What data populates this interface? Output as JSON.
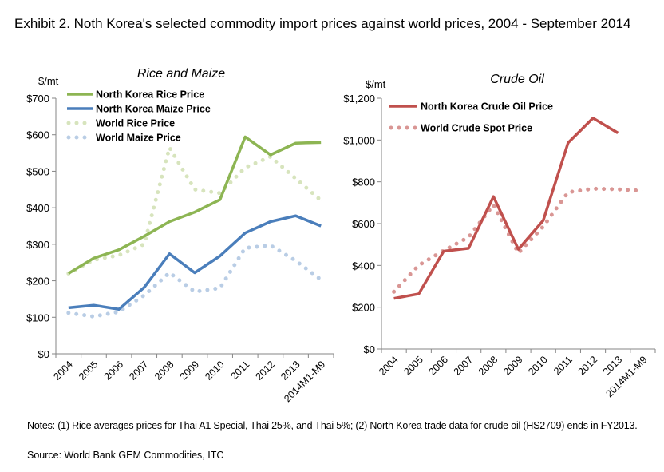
{
  "title": "Exhibit 2. Noth Korea's selected commodity import prices against world prices, 2004 - September 2014",
  "notes": "Notes: (1) Rice averages prices for Thai A1 Special, Thai 25%, and Thai 5%; (2) North Korea trade data for crude oil (HS2709) ends in FY2013.",
  "source": "Source: World Bank  GEM Commodities, ITC",
  "chart_data": [
    {
      "type": "line",
      "title": "Rice and Maize",
      "ylabel": "$/mt",
      "ylim": [
        0,
        700
      ],
      "yticks": [
        "$0",
        "$100",
        "$200",
        "$300",
        "$400",
        "$500",
        "$600",
        "$700"
      ],
      "categories": [
        "2004",
        "2005",
        "2006",
        "2007",
        "2008",
        "2009",
        "2010",
        "2011",
        "2012",
        "2013",
        "2014M1-M9"
      ],
      "legend": "top-left",
      "grid": false,
      "series": [
        {
          "name": "North Korea Rice Price",
          "style": "solid",
          "color": "#8db553",
          "values": [
            220,
            262,
            285,
            322,
            362,
            388,
            422,
            594,
            545,
            577,
            579
          ]
        },
        {
          "name": "North Korea Maize Price",
          "style": "solid",
          "color": "#4a7ebb",
          "values": [
            126,
            133,
            122,
            182,
            274,
            222,
            268,
            331,
            362,
            378,
            350
          ]
        },
        {
          "name": "World Rice Price",
          "style": "dotted",
          "color": "#d7e4bd",
          "values": [
            220,
            257,
            270,
            300,
            565,
            450,
            440,
            510,
            540,
            480,
            420
          ]
        },
        {
          "name": "World Maize Price",
          "style": "dotted",
          "color": "#b9cde5",
          "values": [
            112,
            102,
            115,
            160,
            222,
            170,
            180,
            290,
            297,
            255,
            203
          ]
        }
      ]
    },
    {
      "type": "line",
      "title": "Crude Oil",
      "ylabel": "$/mt",
      "ylim": [
        0,
        1200
      ],
      "yticks": [
        "$0",
        "$200",
        "$400",
        "$600",
        "$800",
        "$1,000",
        "$1,200"
      ],
      "categories": [
        "2004",
        "2005",
        "2006",
        "2007",
        "2008",
        "2009",
        "2010",
        "2011",
        "2012",
        "2013",
        "2014M1-M9"
      ],
      "legend": "top-left",
      "grid": false,
      "series": [
        {
          "name": "North Korea Crude Oil Price",
          "style": "solid",
          "color": "#c0504d",
          "values": [
            242,
            264,
            468,
            482,
            729,
            477,
            615,
            987,
            1105,
            1034,
            null
          ]
        },
        {
          "name": "World Crude Spot Price",
          "style": "dotted",
          "color": "#d99694",
          "values": [
            274,
            401,
            471,
            535,
            690,
            459,
            586,
            750,
            767,
            764,
            757
          ]
        }
      ]
    }
  ]
}
